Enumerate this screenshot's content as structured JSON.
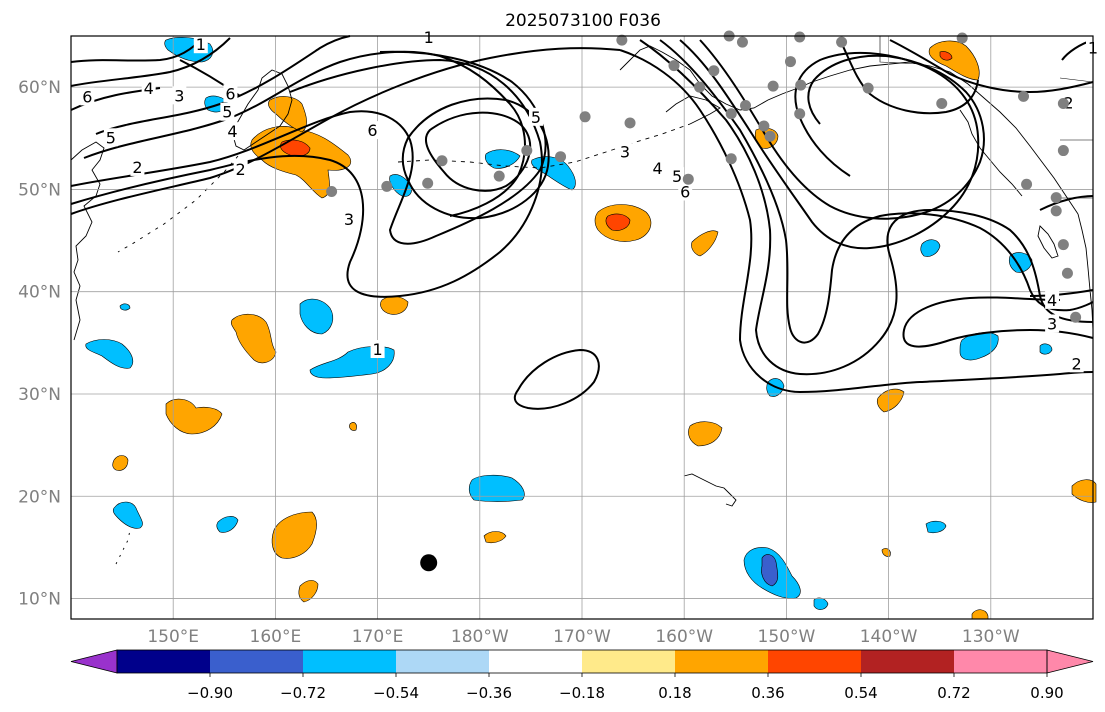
{
  "title": "2025073100 F036",
  "map": {
    "lat_ticks": [
      {
        "lat": 60,
        "label": "60°N"
      },
      {
        "lat": 50,
        "label": "50°N"
      },
      {
        "lat": 40,
        "label": "40°N"
      },
      {
        "lat": 30,
        "label": "30°N"
      },
      {
        "lat": 20,
        "label": "20°N"
      },
      {
        "lat": 10,
        "label": "10°N"
      }
    ],
    "lon_ticks": [
      {
        "lon": 150,
        "label": "150°E"
      },
      {
        "lon": 160,
        "label": "160°E"
      },
      {
        "lon": 170,
        "label": "170°E"
      },
      {
        "lon": 180,
        "label": "180°W"
      },
      {
        "lon": 190,
        "label": "170°W"
      },
      {
        "lon": 200,
        "label": "160°W"
      },
      {
        "lon": 210,
        "label": "150°W"
      },
      {
        "lon": 220,
        "label": "140°W"
      },
      {
        "lon": 230,
        "label": "130°W"
      }
    ],
    "extent": {
      "lon_min": 140,
      "lon_max": 240,
      "lat_min": 8,
      "lat_max": 65
    },
    "contour_labels": [
      {
        "text": "1",
        "lon": 170,
        "lat": 34.3
      },
      {
        "text": "1",
        "lon": 175,
        "lat": 64.8
      },
      {
        "text": "6",
        "lon": 169.5,
        "lat": 55.7
      },
      {
        "text": "3",
        "lon": 167.2,
        "lat": 47.0
      },
      {
        "text": "2",
        "lon": 146.5,
        "lat": 52.1
      },
      {
        "text": "5",
        "lon": 143.9,
        "lat": 55.0
      },
      {
        "text": "6",
        "lon": 141.6,
        "lat": 59.0
      },
      {
        "text": "4",
        "lon": 147.6,
        "lat": 59.8
      },
      {
        "text": "3",
        "lon": 150.6,
        "lat": 59.1
      },
      {
        "text": "1",
        "lon": 152.7,
        "lat": 64.1
      },
      {
        "text": "2",
        "lon": 156.6,
        "lat": 51.9
      },
      {
        "text": "5",
        "lon": 155.3,
        "lat": 57.5
      },
      {
        "text": "4",
        "lon": 155.8,
        "lat": 55.6
      },
      {
        "text": "6",
        "lon": 155.6,
        "lat": 59.3
      },
      {
        "text": "3",
        "lon": 194.2,
        "lat": 53.6
      },
      {
        "text": "4",
        "lon": 197.4,
        "lat": 52.0
      },
      {
        "text": "5",
        "lon": 199.3,
        "lat": 51.2
      },
      {
        "text": "6",
        "lon": 200.1,
        "lat": 49.7
      },
      {
        "text": "5",
        "lon": 185.5,
        "lat": 57.0
      },
      {
        "text": "2",
        "lon": 237.6,
        "lat": 58.4
      },
      {
        "text": "1",
        "lon": 240.0,
        "lat": 63.8
      },
      {
        "text": "4",
        "lon": 236.0,
        "lat": 39.1
      },
      {
        "text": "3",
        "lon": 236.0,
        "lat": 36.8
      },
      {
        "text": "2",
        "lon": 238.4,
        "lat": 32.9
      }
    ],
    "black_dot": {
      "lon": 175.0,
      "lat": 13.5
    },
    "gray_dots": [
      {
        "lon": 193.9,
        "lat": 64.6
      },
      {
        "lon": 204.4,
        "lat": 65.0
      },
      {
        "lon": 205.7,
        "lat": 64.4
      },
      {
        "lon": 211.4,
        "lat": 60.2
      },
      {
        "lon": 208.7,
        "lat": 60.1
      },
      {
        "lon": 206.0,
        "lat": 58.2
      },
      {
        "lon": 207.8,
        "lat": 56.2
      },
      {
        "lon": 204.6,
        "lat": 57.4
      },
      {
        "lon": 201.5,
        "lat": 60.0
      },
      {
        "lon": 194.7,
        "lat": 56.5
      },
      {
        "lon": 190.3,
        "lat": 57.1
      },
      {
        "lon": 187.9,
        "lat": 53.2
      },
      {
        "lon": 184.6,
        "lat": 53.8
      },
      {
        "lon": 174.9,
        "lat": 50.6
      },
      {
        "lon": 170.9,
        "lat": 50.3
      },
      {
        "lon": 165.5,
        "lat": 49.8
      },
      {
        "lon": 176.3,
        "lat": 52.8
      },
      {
        "lon": 181.9,
        "lat": 51.3
      },
      {
        "lon": 200.4,
        "lat": 51.0
      },
      {
        "lon": 204.6,
        "lat": 53.0
      },
      {
        "lon": 208.4,
        "lat": 55.2
      },
      {
        "lon": 218.0,
        "lat": 59.9
      },
      {
        "lon": 225.2,
        "lat": 58.4
      },
      {
        "lon": 233.2,
        "lat": 59.1
      },
      {
        "lon": 237.1,
        "lat": 58.4
      },
      {
        "lon": 237.1,
        "lat": 53.8
      },
      {
        "lon": 236.4,
        "lat": 49.2
      },
      {
        "lon": 237.1,
        "lat": 44.6
      },
      {
        "lon": 237.5,
        "lat": 41.8
      },
      {
        "lon": 238.3,
        "lat": 37.5
      },
      {
        "lon": 233.5,
        "lat": 50.5
      },
      {
        "lon": 236.4,
        "lat": 47.9
      },
      {
        "lon": 227.2,
        "lat": 64.8
      },
      {
        "lon": 215.4,
        "lat": 64.4
      },
      {
        "lon": 211.3,
        "lat": 64.9
      },
      {
        "lon": 210.4,
        "lat": 62.5
      },
      {
        "lon": 202.9,
        "lat": 61.6
      },
      {
        "lon": 211.3,
        "lat": 57.4
      },
      {
        "lon": 199.0,
        "lat": 62.1
      }
    ]
  },
  "colorbar": {
    "tick_labels": [
      "−0.90",
      "−0.72",
      "−0.54",
      "−0.36",
      "−0.18",
      "0.18",
      "0.36",
      "0.54",
      "0.72",
      "0.90"
    ],
    "colors": [
      "#9932cc",
      "#00008b",
      "#3a5fcd",
      "#00bfff",
      "#add8f6",
      "#ffffff",
      "#ffea8a",
      "#ffa500",
      "#ff4500",
      "#b22222",
      "#ff88aa",
      "#ff88aa"
    ]
  },
  "palette": {
    "orange": "#ffa500",
    "red_orange": "#ff4500",
    "sky_blue": "#00bfff",
    "royal_blue": "#3a5fcd",
    "pale_yellow": "#ffea8a",
    "gray_dot": "#808080"
  }
}
